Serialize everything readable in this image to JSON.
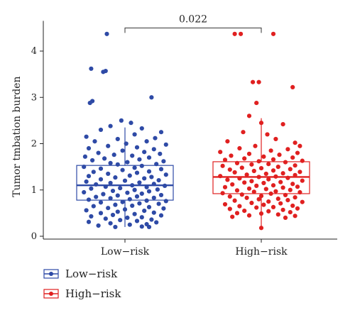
{
  "chart_data": {
    "type": "box-jitter",
    "title": "",
    "ylabel": "Tumor tmbation burden",
    "xlabel": "",
    "ylim": [
      0,
      4.5
    ],
    "yticks": [
      0,
      1,
      2,
      3,
      4
    ],
    "categories": [
      "Low−risk",
      "High−risk"
    ],
    "annotation": {
      "text": "0.022",
      "between": [
        "Low−risk",
        "High−risk"
      ]
    },
    "legend": {
      "position": "bottom-left",
      "entries": [
        "Low−risk",
        "High−risk"
      ]
    },
    "series": [
      {
        "name": "Low−risk",
        "color": "#2e4aa6",
        "box": {
          "whisker_low": 0.2,
          "q1": 0.78,
          "median": 1.1,
          "q3": 1.53,
          "whisker_high": 2.35
        },
        "points": [
          [
            -0.15,
            4.37
          ],
          [
            -0.28,
            3.62
          ],
          [
            -0.16,
            3.57
          ],
          [
            -0.18,
            3.55
          ],
          [
            -0.27,
            2.92
          ],
          [
            -0.29,
            2.88
          ],
          [
            0.22,
            3.0
          ],
          [
            -0.03,
            2.5
          ],
          [
            0.05,
            2.45
          ],
          [
            -0.12,
            2.38
          ],
          [
            0.14,
            2.33
          ],
          [
            0.3,
            2.25
          ],
          [
            -0.2,
            2.3
          ],
          [
            0.08,
            2.2
          ],
          [
            -0.32,
            2.15
          ],
          [
            0.25,
            2.12
          ],
          [
            -0.06,
            2.1
          ],
          [
            0.18,
            2.05
          ],
          [
            -0.25,
            2.05
          ],
          [
            0.01,
            2.0
          ],
          [
            0.34,
            1.98
          ],
          [
            -0.14,
            1.95
          ],
          [
            0.1,
            1.92
          ],
          [
            -0.3,
            1.9
          ],
          [
            0.24,
            1.88
          ],
          [
            -0.02,
            1.85
          ],
          [
            0.16,
            1.82
          ],
          [
            -0.22,
            1.8
          ],
          [
            0.29,
            1.78
          ],
          [
            -0.09,
            1.76
          ],
          [
            0.06,
            1.74
          ],
          [
            -0.33,
            1.72
          ],
          [
            0.2,
            1.7
          ],
          [
            -0.17,
            1.68
          ],
          [
            0.12,
            1.66
          ],
          [
            -0.27,
            1.64
          ],
          [
            0.32,
            1.62
          ],
          [
            0.02,
            1.6
          ],
          [
            -0.12,
            1.58
          ],
          [
            0.26,
            1.56
          ],
          [
            -0.06,
            1.55
          ],
          [
            0.14,
            1.52
          ],
          [
            -0.34,
            1.5
          ],
          [
            0.08,
            1.48
          ],
          [
            -0.2,
            1.46
          ],
          [
            0.3,
            1.45
          ],
          [
            -0.02,
            1.43
          ],
          [
            0.2,
            1.4
          ],
          [
            -0.26,
            1.39
          ],
          [
            0.1,
            1.37
          ],
          [
            -0.14,
            1.35
          ],
          [
            0.34,
            1.33
          ],
          [
            0.04,
            1.31
          ],
          [
            -0.3,
            1.3
          ],
          [
            0.22,
            1.28
          ],
          [
            -0.08,
            1.27
          ],
          [
            0.16,
            1.25
          ],
          [
            -0.2,
            1.23
          ],
          [
            0.28,
            1.21
          ],
          [
            0.0,
            1.2
          ],
          [
            -0.32,
            1.18
          ],
          [
            0.12,
            1.16
          ],
          [
            -0.12,
            1.15
          ],
          [
            0.24,
            1.13
          ],
          [
            -0.24,
            1.12
          ],
          [
            0.06,
            1.1
          ],
          [
            0.33,
            1.09
          ],
          [
            -0.16,
            1.07
          ],
          [
            0.18,
            1.06
          ],
          [
            -0.04,
            1.04
          ],
          [
            -0.28,
            1.03
          ],
          [
            0.27,
            1.01
          ],
          [
            0.08,
            1.0
          ],
          [
            -0.1,
            0.98
          ],
          [
            0.2,
            0.97
          ],
          [
            -0.34,
            0.95
          ],
          [
            0.02,
            0.94
          ],
          [
            0.14,
            0.92
          ],
          [
            -0.18,
            0.91
          ],
          [
            0.3,
            0.89
          ],
          [
            -0.06,
            0.88
          ],
          [
            0.1,
            0.86
          ],
          [
            -0.24,
            0.85
          ],
          [
            0.24,
            0.83
          ],
          [
            -0.12,
            0.82
          ],
          [
            0.04,
            0.8
          ],
          [
            -0.3,
            0.79
          ],
          [
            0.18,
            0.77
          ],
          [
            0.34,
            0.76
          ],
          [
            -0.02,
            0.74
          ],
          [
            -0.2,
            0.73
          ],
          [
            0.12,
            0.71
          ],
          [
            0.28,
            0.7
          ],
          [
            -0.08,
            0.68
          ],
          [
            0.06,
            0.66
          ],
          [
            -0.26,
            0.65
          ],
          [
            0.2,
            0.63
          ],
          [
            -0.14,
            0.61
          ],
          [
            0.32,
            0.6
          ],
          [
            0.0,
            0.58
          ],
          [
            -0.32,
            0.56
          ],
          [
            0.16,
            0.55
          ],
          [
            -0.06,
            0.53
          ],
          [
            0.24,
            0.51
          ],
          [
            -0.2,
            0.5
          ],
          [
            0.08,
            0.48
          ],
          [
            -0.1,
            0.46
          ],
          [
            0.3,
            0.45
          ],
          [
            -0.28,
            0.43
          ],
          [
            0.14,
            0.41
          ],
          [
            0.02,
            0.4
          ],
          [
            -0.16,
            0.38
          ],
          [
            0.22,
            0.36
          ],
          [
            -0.04,
            0.35
          ],
          [
            0.1,
            0.33
          ],
          [
            -0.3,
            0.31
          ],
          [
            0.26,
            0.3
          ],
          [
            -0.12,
            0.28
          ],
          [
            0.18,
            0.26
          ],
          [
            0.04,
            0.25
          ],
          [
            -0.22,
            0.23
          ],
          [
            0.14,
            0.21
          ],
          [
            0.2,
            0.2
          ],
          [
            -0.08,
            0.2
          ]
        ]
      },
      {
        "name": "High−risk",
        "color": "#e02020",
        "box": {
          "whisker_low": 0.2,
          "q1": 0.92,
          "median": 1.28,
          "q3": 1.61,
          "whisker_high": 2.55
        },
        "points": [
          [
            -0.22,
            4.37
          ],
          [
            -0.17,
            4.37
          ],
          [
            0.1,
            4.37
          ],
          [
            -0.07,
            3.33
          ],
          [
            -0.02,
            3.33
          ],
          [
            0.26,
            3.22
          ],
          [
            -0.04,
            2.88
          ],
          [
            -0.1,
            2.6
          ],
          [
            0.0,
            2.45
          ],
          [
            0.18,
            2.42
          ],
          [
            0.05,
            2.2
          ],
          [
            -0.15,
            2.25
          ],
          [
            0.28,
            2.02
          ],
          [
            0.12,
            2.1
          ],
          [
            -0.28,
            2.05
          ],
          [
            0.32,
            1.95
          ],
          [
            -0.05,
            1.95
          ],
          [
            0.22,
            1.88
          ],
          [
            -0.18,
            1.9
          ],
          [
            0.08,
            1.85
          ],
          [
            -0.34,
            1.82
          ],
          [
            0.3,
            1.8
          ],
          [
            -0.1,
            1.78
          ],
          [
            0.15,
            1.76
          ],
          [
            -0.25,
            1.74
          ],
          [
            0.02,
            1.72
          ],
          [
            0.26,
            1.7
          ],
          [
            -0.14,
            1.68
          ],
          [
            0.1,
            1.66
          ],
          [
            -0.3,
            1.65
          ],
          [
            0.34,
            1.63
          ],
          [
            -0.02,
            1.62
          ],
          [
            0.2,
            1.6
          ],
          [
            -0.2,
            1.58
          ],
          [
            0.06,
            1.56
          ],
          [
            -0.08,
            1.55
          ],
          [
            0.28,
            1.53
          ],
          [
            -0.32,
            1.52
          ],
          [
            0.14,
            1.5
          ],
          [
            -0.16,
            1.48
          ],
          [
            0.0,
            1.47
          ],
          [
            0.24,
            1.45
          ],
          [
            -0.26,
            1.44
          ],
          [
            0.1,
            1.42
          ],
          [
            -0.06,
            1.41
          ],
          [
            0.32,
            1.39
          ],
          [
            -0.22,
            1.38
          ],
          [
            0.18,
            1.36
          ],
          [
            0.04,
            1.35
          ],
          [
            -0.12,
            1.33
          ],
          [
            0.28,
            1.32
          ],
          [
            -0.34,
            1.3
          ],
          [
            0.12,
            1.29
          ],
          [
            -0.02,
            1.28
          ],
          [
            0.22,
            1.26
          ],
          [
            -0.18,
            1.25
          ],
          [
            0.06,
            1.23
          ],
          [
            -0.28,
            1.22
          ],
          [
            0.34,
            1.2
          ],
          [
            -0.08,
            1.19
          ],
          [
            0.16,
            1.17
          ],
          [
            -0.14,
            1.16
          ],
          [
            0.02,
            1.15
          ],
          [
            0.26,
            1.13
          ],
          [
            -0.24,
            1.12
          ],
          [
            0.1,
            1.1
          ],
          [
            -0.04,
            1.09
          ],
          [
            0.3,
            1.07
          ],
          [
            -0.3,
            1.06
          ],
          [
            0.18,
            1.05
          ],
          [
            -0.1,
            1.03
          ],
          [
            0.04,
            1.02
          ],
          [
            0.24,
            1.0
          ],
          [
            -0.2,
            0.99
          ],
          [
            0.12,
            0.97
          ],
          [
            -0.06,
            0.96
          ],
          [
            0.32,
            0.95
          ],
          [
            -0.32,
            0.93
          ],
          [
            0.08,
            0.92
          ],
          [
            -0.16,
            0.9
          ],
          [
            0.2,
            0.89
          ],
          [
            0.0,
            0.87
          ],
          [
            -0.26,
            0.86
          ],
          [
            0.28,
            0.84
          ],
          [
            -0.12,
            0.83
          ],
          [
            0.14,
            0.81
          ],
          [
            -0.02,
            0.8
          ],
          [
            0.22,
            0.78
          ],
          [
            -0.22,
            0.77
          ],
          [
            0.06,
            0.75
          ],
          [
            0.34,
            0.74
          ],
          [
            -0.08,
            0.72
          ],
          [
            0.16,
            0.71
          ],
          [
            -0.3,
            0.69
          ],
          [
            0.02,
            0.68
          ],
          [
            0.26,
            0.66
          ],
          [
            -0.18,
            0.65
          ],
          [
            0.1,
            0.63
          ],
          [
            -0.04,
            0.62
          ],
          [
            0.3,
            0.6
          ],
          [
            -0.26,
            0.59
          ],
          [
            0.18,
            0.57
          ],
          [
            -0.14,
            0.55
          ],
          [
            0.06,
            0.54
          ],
          [
            0.24,
            0.52
          ],
          [
            -0.2,
            0.5
          ],
          [
            0.0,
            0.49
          ],
          [
            0.14,
            0.47
          ],
          [
            -0.1,
            0.45
          ],
          [
            0.28,
            0.44
          ],
          [
            -0.24,
            0.42
          ],
          [
            0.2,
            0.4
          ],
          [
            0.0,
            0.18
          ]
        ]
      }
    ]
  }
}
